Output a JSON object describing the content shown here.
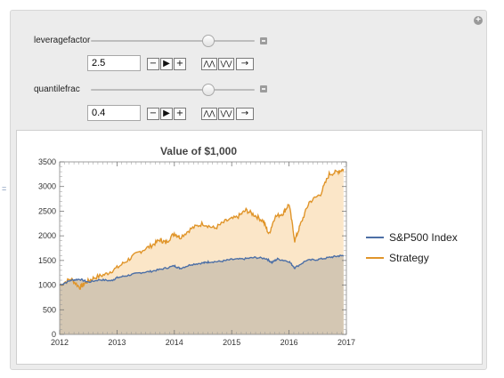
{
  "controls": {
    "leverage": {
      "label": "leveragefactor",
      "value": "2.5"
    },
    "quantile": {
      "label": "quantilefrac",
      "value": "0.4"
    },
    "buttons": {
      "minus": "−",
      "play": "▶",
      "plus": "+",
      "faster": "⋀⋀",
      "slower": "⋁⋁",
      "direction": "→"
    }
  },
  "side_marker": "=",
  "chart_data": {
    "type": "area",
    "title": "Value of $1,000",
    "xlabel": "",
    "ylabel": "",
    "xlim": [
      2012,
      2017
    ],
    "ylim": [
      0,
      3500
    ],
    "xticks": [
      "2012",
      "2013",
      "2014",
      "2015",
      "2016",
      "2017"
    ],
    "yticks": [
      "0",
      "500",
      "1000",
      "1500",
      "2000",
      "2500",
      "3000",
      "3500"
    ],
    "legend_position": "right",
    "series": [
      {
        "name": "S&P500 Index",
        "color": "#4c6fa6",
        "fill": "#d4c7b3",
        "x": [
          2012.0,
          2012.2,
          2012.35,
          2012.5,
          2012.7,
          2012.9,
          2013.0,
          2013.2,
          2013.4,
          2013.6,
          2013.8,
          2014.0,
          2014.1,
          2014.3,
          2014.5,
          2014.6,
          2014.8,
          2015.0,
          2015.2,
          2015.4,
          2015.6,
          2015.7,
          2015.8,
          2016.0,
          2016.1,
          2016.3,
          2016.5,
          2016.7,
          2016.85,
          2016.95
        ],
        "values": [
          1000,
          1100,
          1120,
          1060,
          1110,
          1090,
          1150,
          1200,
          1250,
          1280,
          1330,
          1390,
          1340,
          1420,
          1450,
          1470,
          1480,
          1520,
          1530,
          1560,
          1540,
          1460,
          1530,
          1480,
          1350,
          1500,
          1520,
          1560,
          1590,
          1600
        ]
      },
      {
        "name": "Strategy",
        "color": "#e0952a",
        "fill": "#fbe6c8",
        "x": [
          2012.0,
          2012.2,
          2012.35,
          2012.45,
          2012.6,
          2012.8,
          2013.0,
          2013.2,
          2013.4,
          2013.6,
          2013.75,
          2013.85,
          2014.0,
          2014.1,
          2014.3,
          2014.5,
          2014.7,
          2014.9,
          2015.1,
          2015.25,
          2015.4,
          2015.55,
          2015.65,
          2015.75,
          2015.9,
          2016.0,
          2016.1,
          2016.2,
          2016.35,
          2016.55,
          2016.7,
          2016.85,
          2016.95
        ],
        "values": [
          1000,
          1130,
          950,
          1050,
          1150,
          1220,
          1350,
          1520,
          1680,
          1800,
          1920,
          1860,
          2050,
          1970,
          2150,
          2250,
          2150,
          2300,
          2380,
          2520,
          2420,
          2300,
          2030,
          2380,
          2460,
          2650,
          1900,
          2230,
          2680,
          2850,
          3250,
          3300,
          3350
        ]
      }
    ]
  }
}
